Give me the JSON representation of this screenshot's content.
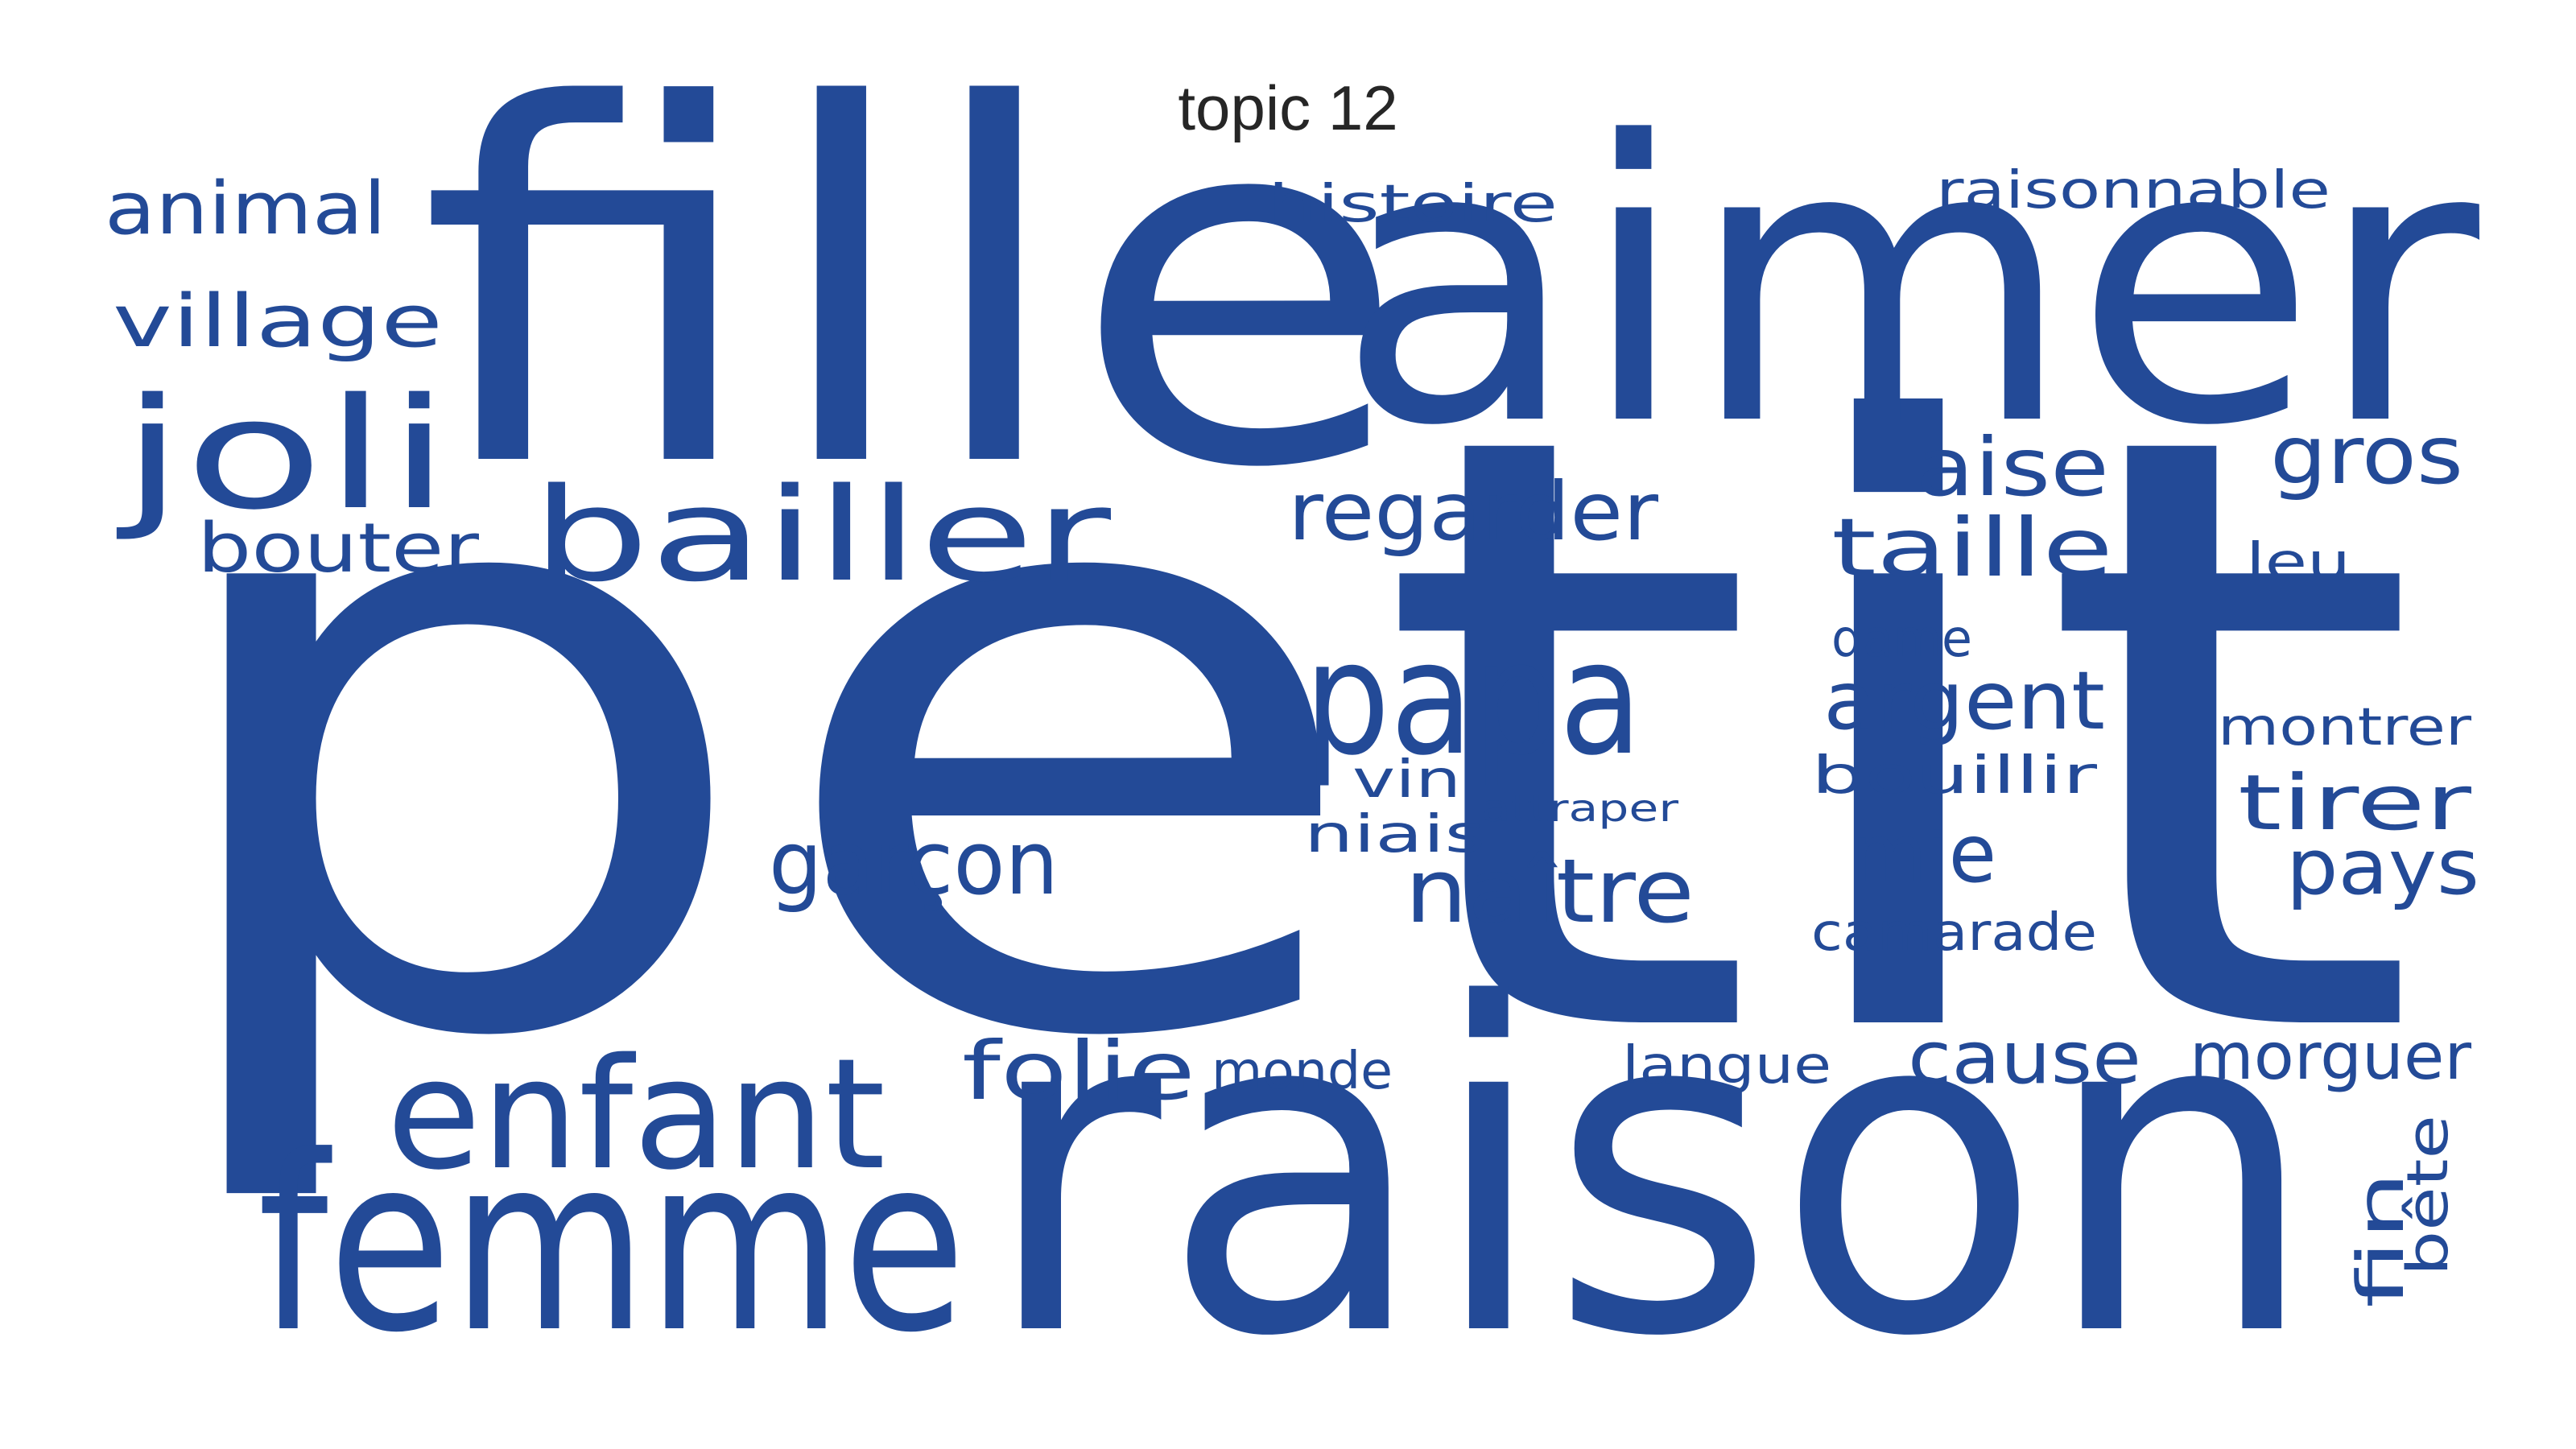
{
  "title": "topic 12",
  "color": "#234A97",
  "words": [
    {
      "text": "petit",
      "weight": 1.0
    },
    {
      "text": "raison",
      "weight": 0.62
    },
    {
      "text": "fille",
      "weight": 0.6
    },
    {
      "text": "aimer",
      "weight": 0.52
    },
    {
      "text": "femme",
      "weight": 0.4
    },
    {
      "text": "enfant",
      "weight": 0.3
    },
    {
      "text": "papa",
      "weight": 0.28
    },
    {
      "text": "joli",
      "weight": 0.25
    },
    {
      "text": "bailler",
      "weight": 0.25
    },
    {
      "text": "garçon",
      "weight": 0.18
    },
    {
      "text": "naître",
      "weight": 0.18
    },
    {
      "text": "regarder",
      "weight": 0.17
    },
    {
      "text": "argent",
      "weight": 0.16
    },
    {
      "text": "taille",
      "weight": 0.16
    },
    {
      "text": "aise",
      "weight": 0.16
    },
    {
      "text": "gros",
      "weight": 0.16
    },
    {
      "text": "mie",
      "weight": 0.16
    },
    {
      "text": "folie",
      "weight": 0.16
    },
    {
      "text": "cause",
      "weight": 0.15
    },
    {
      "text": "tirer",
      "weight": 0.15
    },
    {
      "text": "pays",
      "weight": 0.15
    },
    {
      "text": "animal",
      "weight": 0.14
    },
    {
      "text": "village",
      "weight": 0.14
    },
    {
      "text": "bouter",
      "weight": 0.14
    },
    {
      "text": "morguer",
      "weight": 0.13
    },
    {
      "text": "fin",
      "weight": 0.13
    },
    {
      "text": "bête",
      "weight": 0.11
    },
    {
      "text": "histoire",
      "weight": 0.1
    },
    {
      "text": "raisonnable",
      "weight": 0.1
    },
    {
      "text": "monde",
      "weight": 0.1
    },
    {
      "text": "langue",
      "weight": 0.1
    },
    {
      "text": "camarade",
      "weight": 0.1
    },
    {
      "text": "montrer",
      "weight": 0.1
    },
    {
      "text": "bouillir",
      "weight": 0.1
    },
    {
      "text": "dame",
      "weight": 0.09
    },
    {
      "text": "leu",
      "weight": 0.09
    },
    {
      "text": "niais",
      "weight": 0.09
    },
    {
      "text": "vin",
      "weight": 0.09
    },
    {
      "text": "attraper",
      "weight": 0.07
    }
  ]
}
